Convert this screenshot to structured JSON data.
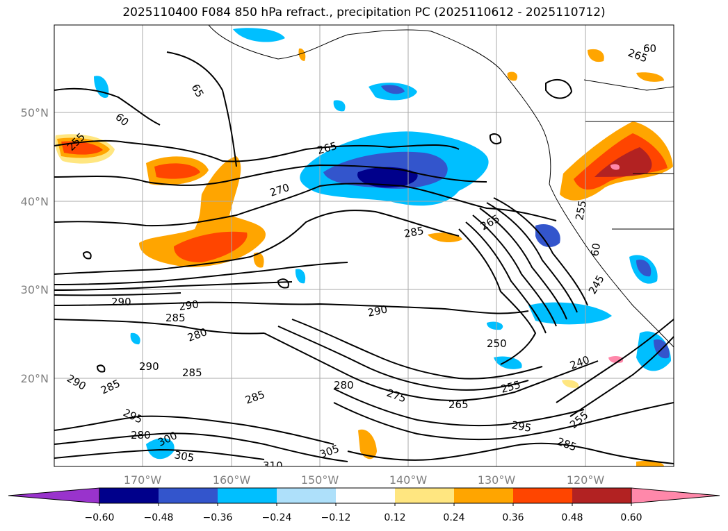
{
  "title": "2025110400 F084 850 hPa refract., precipitation PC (2025110612 - 2025110712)",
  "lon_labels": [
    "170°W",
    "160°W",
    "150°W",
    "140°W",
    "130°W",
    "120°W"
  ],
  "lat_labels": [
    "50°N",
    "40°N",
    "30°N",
    "20°N"
  ],
  "colorbar": {
    "ticks": [
      "−0.60",
      "−0.48",
      "−0.36",
      "−0.24",
      "−0.12",
      "0.12",
      "0.24",
      "0.36",
      "0.48",
      "0.60"
    ],
    "colors": [
      "#9933cc",
      "#00008b",
      "#3355cc",
      "#00bfff",
      "#aee0fa",
      "#ffffff",
      "#ffe680",
      "#ffa500",
      "#ff4500",
      "#b22222",
      "#ff88aa"
    ]
  },
  "contour_labels": [
    "265",
    "270",
    "285",
    "290",
    "290",
    "285",
    "290",
    "280",
    "290",
    "285",
    "290",
    "285",
    "280",
    "295",
    "285",
    "280",
    "300",
    "305",
    "310",
    "305",
    "275",
    "265",
    "255",
    "295",
    "285",
    "255",
    "240",
    "250",
    "245",
    "255",
    "60",
    "265",
    "265",
    "60",
    "65",
    "60",
    "255"
  ]
}
